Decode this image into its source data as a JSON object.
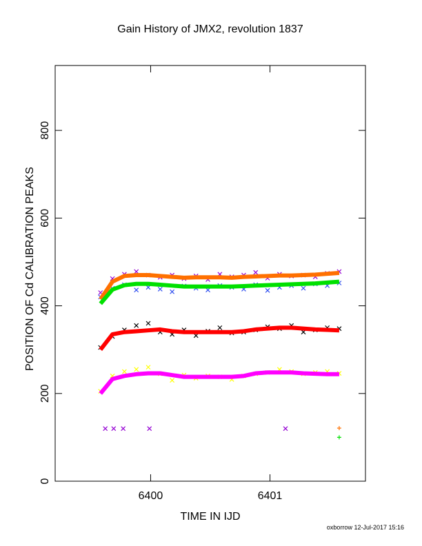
{
  "chart_data": {
    "type": "scatter",
    "title": "Gain History of JMX2, revolution 1837",
    "xlabel": "TIME IN IJD",
    "ylabel": "POSITION OF Cd CALIBRATION PEAKS",
    "footer": "oxborrow 12-Jul-2017 15:16",
    "xlim": [
      6399.2,
      6401.8
    ],
    "xticks": [
      6400,
      6401
    ],
    "ylim": [
      0,
      948
    ],
    "yticks": [
      0,
      200,
      400,
      600,
      800
    ],
    "x": [
      6399.58,
      6399.68,
      6399.78,
      6399.88,
      6399.98,
      6400.08,
      6400.18,
      6400.28,
      6400.38,
      6400.48,
      6400.58,
      6400.68,
      6400.78,
      6400.88,
      6400.98,
      6401.08,
      6401.18,
      6401.28,
      6401.38,
      6401.48,
      6401.58
    ],
    "series": [
      {
        "color": "#9400d3",
        "marker": "x",
        "values": [
          430,
          462,
          472,
          478,
          470,
          465,
          470,
          462,
          468,
          460,
          472,
          466,
          470,
          476,
          463,
          472,
          468,
          470,
          466,
          474,
          478
        ]
      },
      {
        "color": "#3050f0",
        "marker": "x",
        "values": [
          420,
          440,
          448,
          436,
          442,
          438,
          432,
          445,
          440,
          436,
          446,
          442,
          438,
          448,
          435,
          442,
          446,
          440,
          450,
          446,
          452
        ]
      },
      {
        "color": "#ff7000",
        "marker": "line",
        "values": [
          415,
          455,
          468,
          470,
          470,
          468,
          466,
          464,
          465,
          465,
          465,
          464,
          466,
          467,
          468,
          469,
          469,
          470,
          471,
          473,
          475
        ]
      },
      {
        "color": "#00e000",
        "marker": "line",
        "values": [
          405,
          437,
          447,
          450,
          450,
          448,
          446,
          444,
          444,
          444,
          444,
          444,
          445,
          446,
          447,
          448,
          449,
          450,
          451,
          453,
          455
        ]
      },
      {
        "color": "#000000",
        "marker": "x",
        "values": [
          305,
          330,
          345,
          355,
          360,
          340,
          335,
          345,
          332,
          342,
          350,
          338,
          340,
          345,
          352,
          348,
          355,
          340,
          345,
          350,
          348
        ]
      },
      {
        "color": "#ff0000",
        "marker": "line",
        "values": [
          300,
          335,
          340,
          342,
          344,
          346,
          342,
          340,
          340,
          340,
          340,
          340,
          342,
          346,
          348,
          350,
          350,
          348,
          346,
          345,
          344
        ]
      },
      {
        "color": "#ffff00",
        "marker": "x",
        "values": [
          205,
          240,
          250,
          255,
          260,
          245,
          230,
          242,
          235,
          240,
          238,
          232,
          240,
          245,
          248,
          255,
          250,
          245,
          248,
          250,
          246
        ]
      },
      {
        "color": "#ff00ff",
        "marker": "line",
        "values": [
          200,
          233,
          240,
          244,
          246,
          246,
          242,
          238,
          238,
          238,
          238,
          238,
          240,
          246,
          248,
          248,
          248,
          246,
          245,
          244,
          244
        ]
      },
      {
        "color": "#9400d3",
        "marker": "x",
        "x": [
          6399.62,
          6399.69,
          6399.77,
          6399.99,
          6401.13
        ],
        "values": [
          120,
          120,
          120,
          120,
          120
        ]
      },
      {
        "color": "#ff7000",
        "marker": "+",
        "x": [
          6401.58
        ],
        "values": [
          121
        ]
      },
      {
        "color": "#00e000",
        "marker": "+",
        "x": [
          6401.58
        ],
        "values": [
          100
        ]
      }
    ]
  }
}
